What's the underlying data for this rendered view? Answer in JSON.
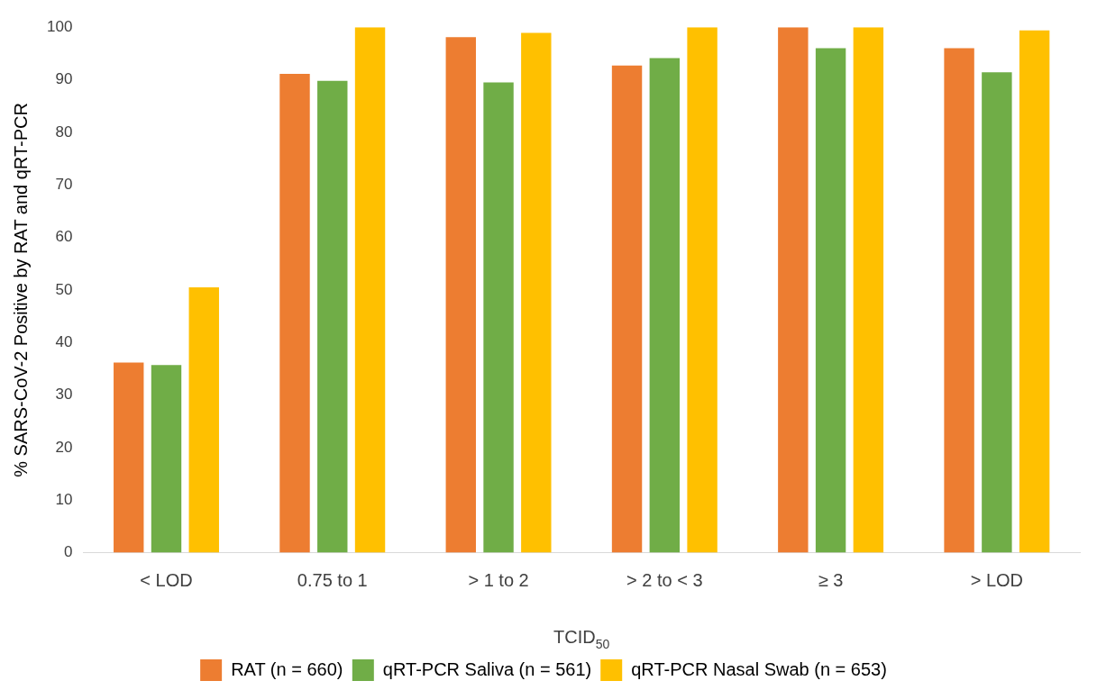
{
  "chart_data": {
    "type": "bar",
    "xlabel": "TCID$_{50}$",
    "ylabel": "% SARS-CoV-2 Positive by RAT and qRT-PCR",
    "categories": [
      "< LOD",
      "0.75 to 1",
      "> 1 to 2",
      "> 2 to < 3",
      "≥ 3",
      "> LOD"
    ],
    "series": [
      {
        "name": "RAT (n = 660)",
        "color": "#ed7d31",
        "values": [
          36.2,
          91.1,
          98.1,
          92.7,
          100,
          96
        ]
      },
      {
        "name": "qRT-PCR Saliva (n = 561)",
        "color": "#70ad47",
        "values": [
          35.7,
          89.8,
          89.5,
          94.1,
          96,
          91.4
        ]
      },
      {
        "name": "qRT-PCR Nasal Swab (n = 653)",
        "color": "#ffc000",
        "values": [
          50.5,
          100,
          98.9,
          100,
          100,
          99.4
        ]
      }
    ],
    "ylim": [
      0,
      100
    ],
    "yticks": [
      0,
      10,
      20,
      30,
      40,
      50,
      60,
      70,
      80,
      90,
      100
    ],
    "grid": false,
    "legend": "bottom"
  }
}
